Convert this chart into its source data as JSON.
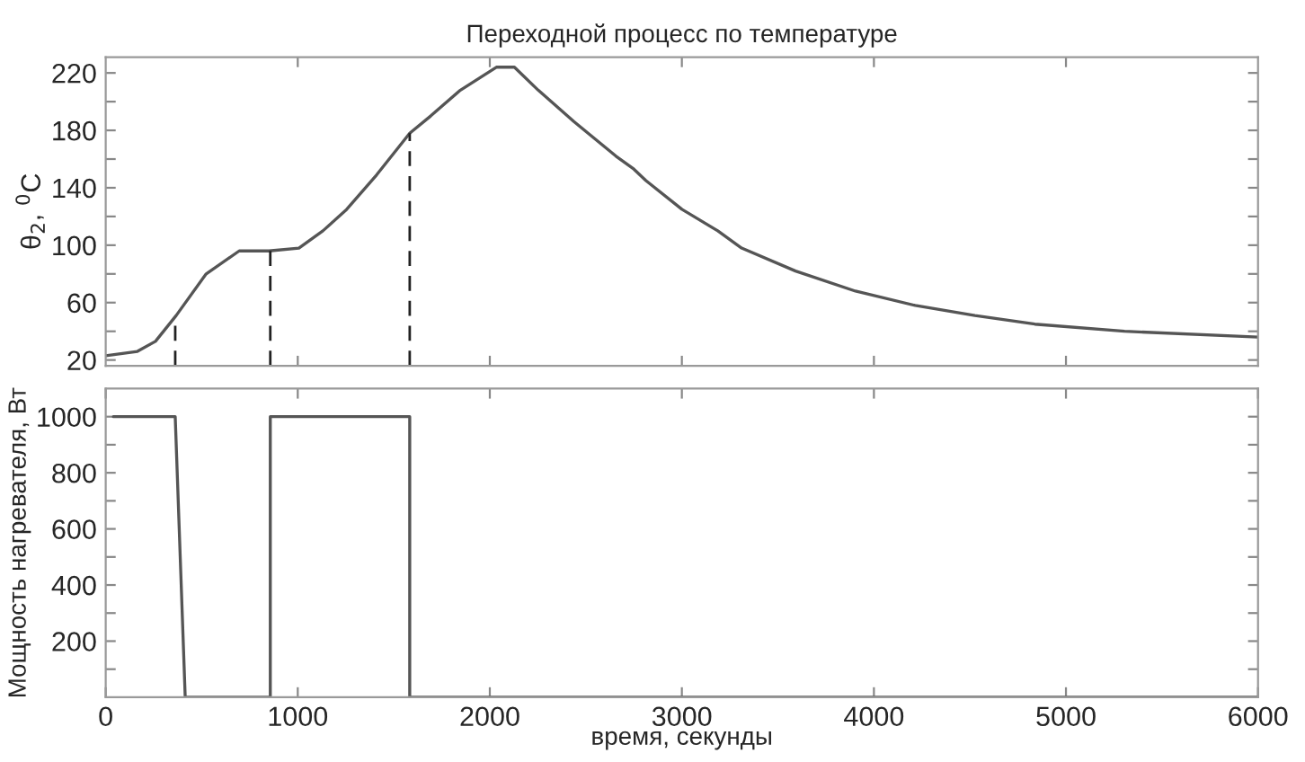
{
  "chart_data": [
    {
      "type": "line",
      "title": "Переходной процесс по температуре",
      "ylabel": "θ$_{2}$, $^{0}$C",
      "tick_labels": "y",
      "grid": false,
      "legend": false,
      "xlim": [
        0,
        6000
      ],
      "xticks": [
        {
          "value": 1000,
          "label": null
        },
        {
          "value": 2000,
          "label": null
        },
        {
          "value": 3000,
          "label": null
        },
        {
          "value": 4000,
          "label": null
        },
        {
          "value": 5000,
          "label": null
        }
      ],
      "ylim": [
        16,
        231
      ],
      "yticks": [
        20,
        {
          "value": 40,
          "label": null
        },
        60,
        {
          "value": 80,
          "label": null
        },
        100,
        {
          "value": 120,
          "label": null
        },
        140,
        {
          "value": 160,
          "label": null
        },
        180,
        {
          "value": 200,
          "label": null
        },
        220
      ],
      "series": [
        {
          "color": "#555555",
          "x": [
            0,
            165,
            259,
            367,
            523,
            695,
            850,
            1006,
            1131,
            1255,
            1411,
            1583,
            1692,
            1847,
            2034,
            2128,
            2252,
            2439,
            2657,
            2750,
            2813,
            3000,
            3187,
            3311,
            3592,
            3904,
            4215,
            4526,
            4838,
            5305,
            6000
          ],
          "values": [
            23,
            26,
            33,
            51,
            80,
            96,
            96,
            98,
            110,
            125,
            149,
            178,
            190,
            208,
            224,
            224,
            208,
            186,
            162,
            153,
            145,
            125,
            110,
            98,
            82,
            68,
            58,
            51,
            45,
            40,
            36
          ]
        }
      ],
      "ref_lines": [
        {
          "axis": "x",
          "value": 362,
          "color": "#222222",
          "line_style": "dashed"
        },
        {
          "axis": "x",
          "value": 857,
          "color": "#222222",
          "line_style": "dashed"
        },
        {
          "axis": "x",
          "value": 1583,
          "color": "#222222",
          "line_style": "dashed"
        }
      ]
    },
    {
      "type": "line",
      "xlabel": "время, секунды",
      "ylabel": "Мощность нагревателя, Вт",
      "grid": false,
      "legend": false,
      "xlim": [
        0,
        6000
      ],
      "xticks": [
        0,
        1000,
        2000,
        3000,
        4000,
        5000,
        6000
      ],
      "ylim": [
        0,
        1100
      ],
      "yticks": [
        {
          "value": 100,
          "label": null
        },
        200,
        {
          "value": 300,
          "label": null
        },
        400,
        {
          "value": 500,
          "label": null
        },
        600,
        {
          "value": 700,
          "label": null
        },
        800,
        {
          "value": 900,
          "label": null
        },
        1000
      ],
      "series": [
        {
          "color": "#555555",
          "x": [
            40,
            362,
            414,
            857,
            857,
            1583,
            1583,
            6000
          ],
          "values": [
            1000,
            1000,
            0,
            0,
            1000,
            1000,
            0,
            0
          ]
        }
      ]
    }
  ]
}
